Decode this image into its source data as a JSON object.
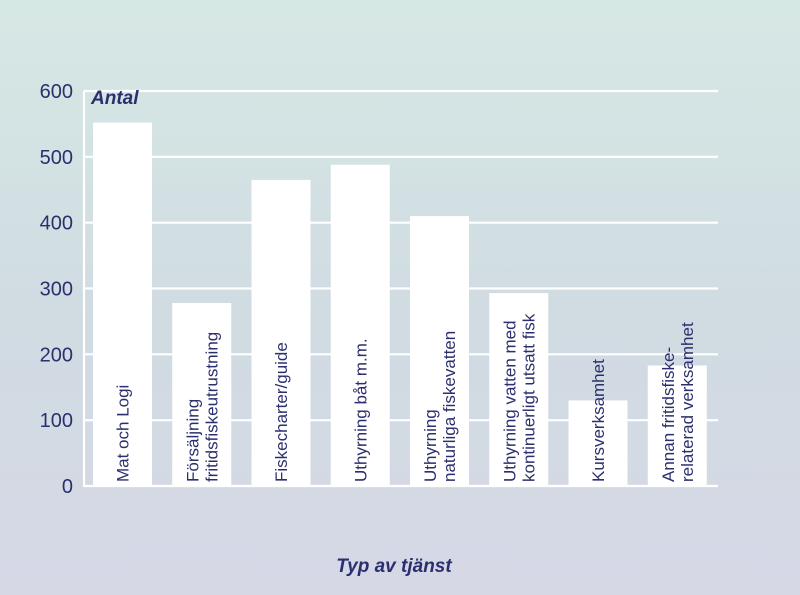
{
  "chart_data": {
    "type": "bar",
    "ylabel": "Antal",
    "xlabel": "Typ av tjänst",
    "ylim": [
      0,
      600
    ],
    "yticks": [
      0,
      100,
      200,
      300,
      400,
      500,
      600
    ],
    "grid": true,
    "categories": [
      [
        "Mat och Logi"
      ],
      [
        "Försäljning",
        "fritidsfiskeutrustning"
      ],
      [
        "Fiskecharter/guide"
      ],
      [
        "Uthyrning båt m.m."
      ],
      [
        "Uthyrning",
        "naturliga fiskevatten"
      ],
      [
        "Uthyrning vatten med",
        "kontinuerligt utsatt fisk"
      ],
      [
        "Kursverksamhet"
      ],
      [
        "Annan fritidsfiske-",
        "relaterad verksamhet"
      ]
    ],
    "values": [
      552,
      278,
      465,
      488,
      410,
      293,
      130,
      183
    ],
    "colors": {
      "bar": "#ffffff",
      "text": "#2b2f6e",
      "grid": "#ffffff"
    }
  }
}
